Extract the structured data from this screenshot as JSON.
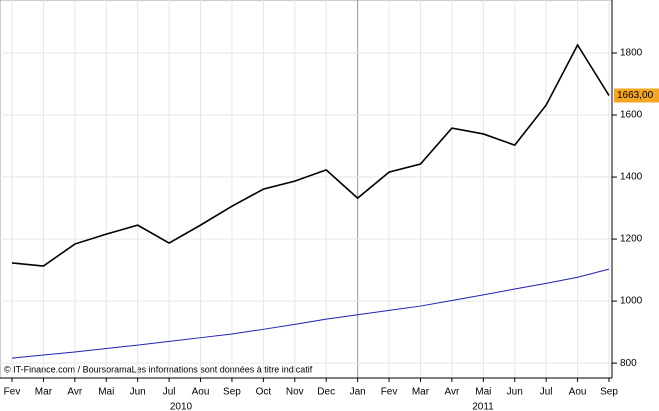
{
  "chart_data": {
    "type": "line",
    "categories": [
      "Fev",
      "Mar",
      "Avr",
      "Mai",
      "Jun",
      "Jul",
      "Aou",
      "Sep",
      "Oct",
      "Nov",
      "Dec",
      "Jan",
      "Fev",
      "Mar",
      "Avr",
      "Mai",
      "Jun",
      "Jul",
      "Aou",
      "Sep"
    ],
    "years": [
      "2010",
      "2011"
    ],
    "series": [
      {
        "color": "#000000",
        "values": [
          1123,
          1113,
          1184,
          1216,
          1245,
          1187,
          1245,
          1306,
          1361,
          1387,
          1423,
          1332,
          1416,
          1442,
          1558,
          1539,
          1503,
          1632,
          1826,
          1663
        ]
      },
      {
        "color": "#2020b0",
        "values": [
          816,
          826,
          836,
          847,
          858,
          870,
          882,
          894,
          909,
          925,
          942,
          956,
          970,
          984,
          1002,
          1020,
          1039,
          1057,
          1077,
          1103
        ]
      }
    ],
    "last_label": {
      "value": 1663,
      "label": "1663,00"
    },
    "source": "© IT-Finance.com / BoursoramaLes informations sont données à titre indicatif",
    "ylim": [
      752,
      1971
    ],
    "yticks": [
      800,
      1000,
      1200,
      1400,
      1600,
      1800
    ],
    "grid": true
  }
}
